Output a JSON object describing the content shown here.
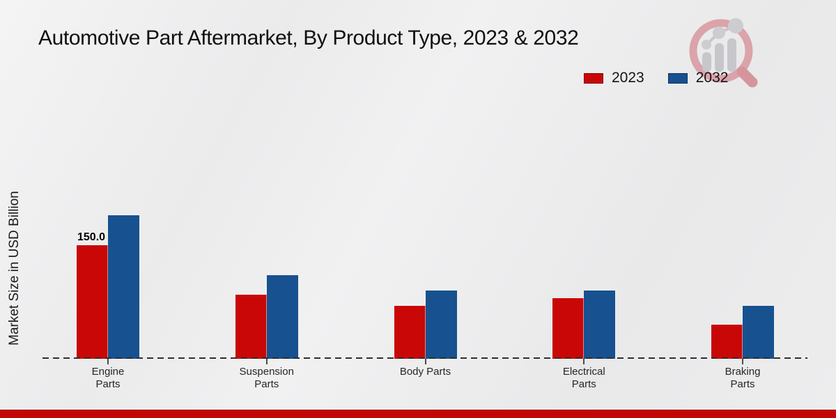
{
  "title": "Automotive Part Aftermarket, By Product Type, 2023 & 2032",
  "y_axis_label": "Market Size in USD Billion",
  "legend": {
    "items": [
      {
        "label": "2023",
        "color": "#c90707"
      },
      {
        "label": "2032",
        "color": "#17518f"
      }
    ]
  },
  "watermark": {
    "name": "market-research-future-logo"
  },
  "footer": {
    "accent_color": "#c30505"
  },
  "chart_data": {
    "type": "bar",
    "title": "Automotive Part Aftermarket, By Product Type, 2023 & 2032",
    "ylabel": "Market Size in USD Billion",
    "xlabel": "",
    "categories": [
      "Engine Parts",
      "Suspension Parts",
      "Body Parts",
      "Electrical Parts",
      "Braking Parts"
    ],
    "tick_lines": [
      [
        "Engine",
        "Parts"
      ],
      [
        "Suspension",
        "Parts"
      ],
      [
        "Body Parts"
      ],
      [
        "Electrical",
        "Parts"
      ],
      [
        "Braking",
        "Parts"
      ]
    ],
    "series": [
      {
        "name": "2023",
        "color": "#c90707",
        "values": [
          150.0,
          85,
          70,
          80,
          45
        ]
      },
      {
        "name": "2032",
        "color": "#17518f",
        "values": [
          190,
          110,
          90,
          90,
          70
        ]
      }
    ],
    "bar_value_labels": [
      {
        "series_index": 0,
        "category_index": 0,
        "text": "150.0"
      }
    ],
    "ylim": [
      0,
      200
    ],
    "grid": false,
    "legend_position": "top-right",
    "baseline_style": "dashed"
  }
}
